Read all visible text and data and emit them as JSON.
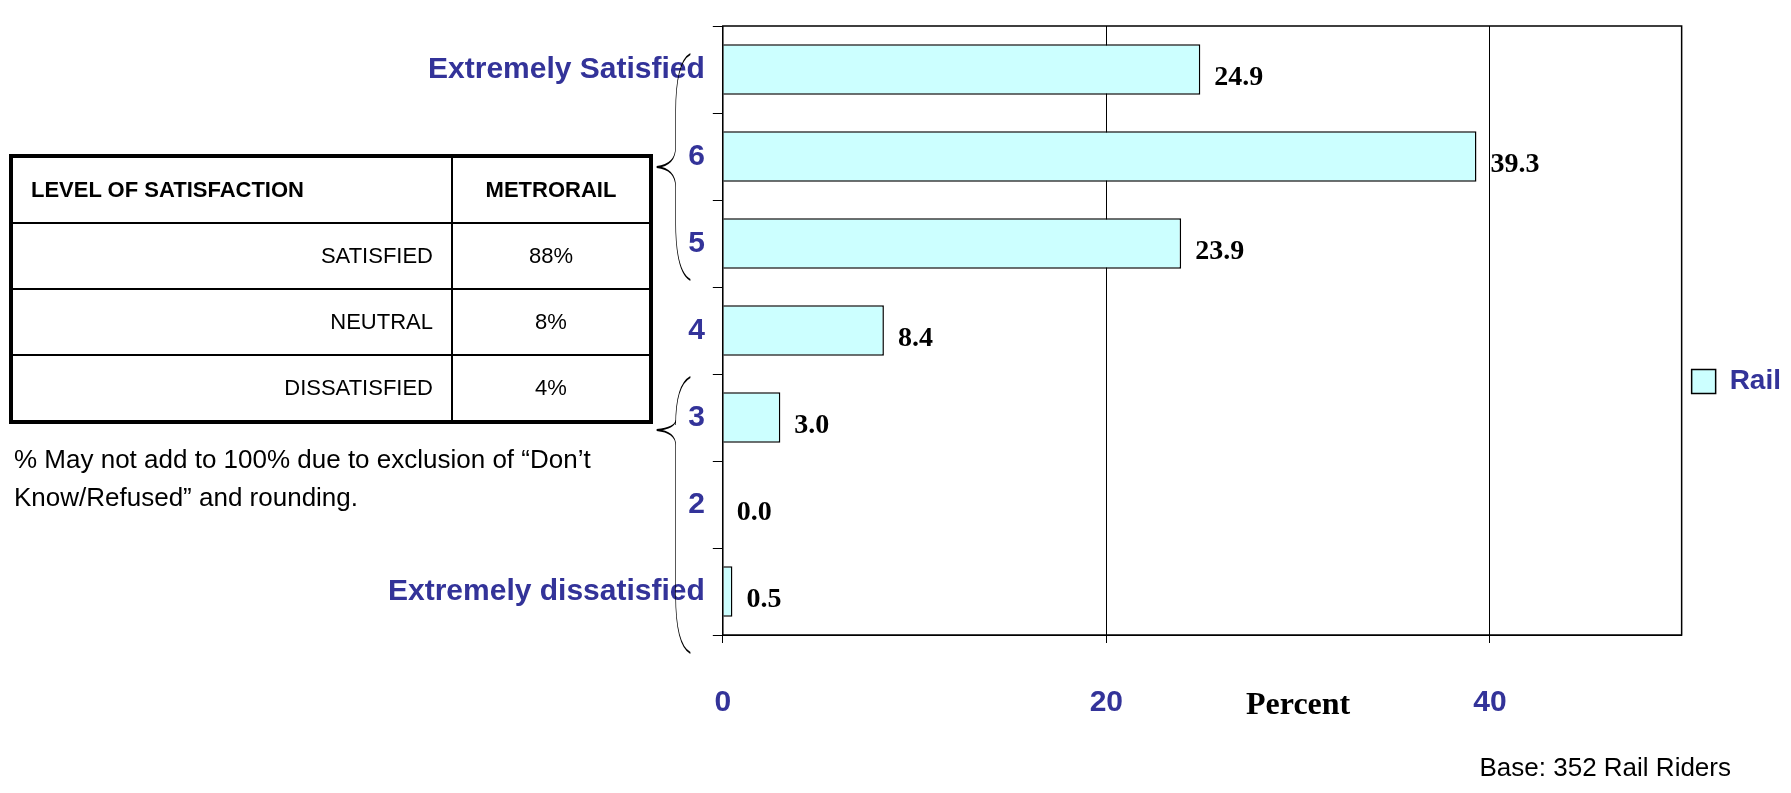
{
  "chart_data": {
    "type": "bar",
    "orientation": "horizontal",
    "xlabel": "Percent",
    "categories": [
      "Extremely Satisfied",
      "6",
      "5",
      "4",
      "3",
      "2",
      "Extremely dissatisfied"
    ],
    "series": [
      {
        "name": "Rail",
        "color": "#ccffff",
        "values": [
          24.9,
          39.3,
          23.9,
          8.4,
          3.0,
          0.0,
          0.5
        ],
        "value_labels": [
          "24.9",
          "39.3",
          "23.9",
          "8.4",
          "3.0",
          "0.0",
          "0.5"
        ]
      }
    ],
    "xlim": [
      0,
      50
    ],
    "xticks": [
      0,
      20,
      40
    ],
    "grid": "x",
    "legend": "right",
    "annotations": [
      "LEVEL OF SATISFACTION",
      "METRORAIL",
      "SATISFIED",
      "88%",
      "NEUTRAL",
      "8%",
      "DISSATISFIED",
      "4%",
      "% May not add to 100% due to exclusion of “Don’t Know/Refused” and rounding.",
      "Base: 352 Rail Riders"
    ]
  }
}
